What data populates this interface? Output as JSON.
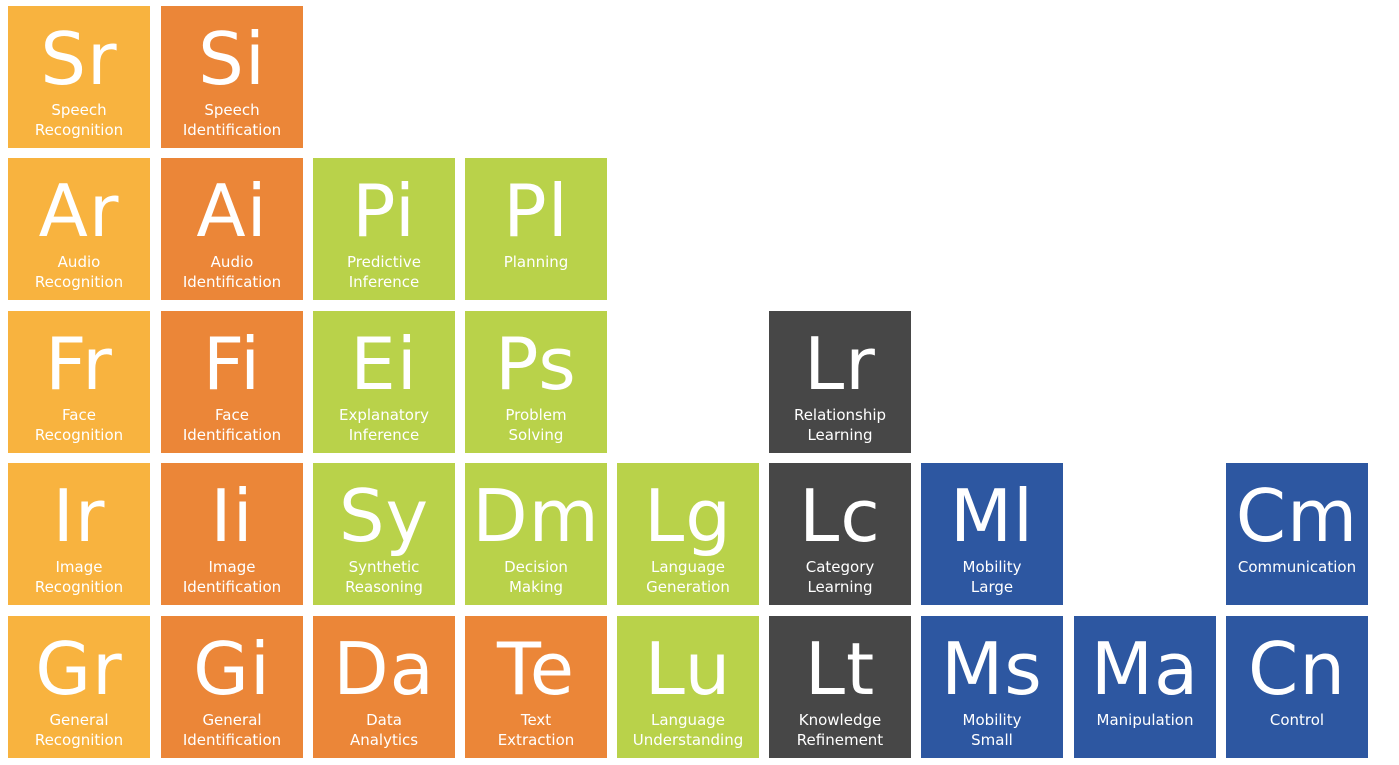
{
  "colors": {
    "yellow": "#F8B33F",
    "orange": "#EB8638",
    "green": "#B9D24A",
    "dark": "#474747",
    "blue": "#2D57A1"
  },
  "elements": {
    "sr": {
      "symbol": "Sr",
      "line1": "Speech",
      "line2": "Recognition"
    },
    "si": {
      "symbol": "Si",
      "line1": "Speech",
      "line2": "Identification"
    },
    "ar": {
      "symbol": "Ar",
      "line1": "Audio",
      "line2": "Recognition"
    },
    "ai": {
      "symbol": "Ai",
      "line1": "Audio",
      "line2": "Identification"
    },
    "pi": {
      "symbol": "Pi",
      "line1": "Predictive",
      "line2": "Inference"
    },
    "pl": {
      "symbol": "Pl",
      "line1": "Planning",
      "line2": ""
    },
    "fr": {
      "symbol": "Fr",
      "line1": "Face",
      "line2": "Recognition"
    },
    "fi": {
      "symbol": "Fi",
      "line1": "Face",
      "line2": "Identification"
    },
    "ei": {
      "symbol": "Ei",
      "line1": "Explanatory",
      "line2": "Inference"
    },
    "ps": {
      "symbol": "Ps",
      "line1": "Problem",
      "line2": "Solving"
    },
    "lr": {
      "symbol": "Lr",
      "line1": "Relationship",
      "line2": "Learning"
    },
    "ir": {
      "symbol": "Ir",
      "line1": "Image",
      "line2": "Recognition"
    },
    "ii": {
      "symbol": "Ii",
      "line1": "Image",
      "line2": "Identification"
    },
    "sy": {
      "symbol": "Sy",
      "line1": "Synthetic",
      "line2": "Reasoning"
    },
    "dm": {
      "symbol": "Dm",
      "line1": "Decision",
      "line2": "Making"
    },
    "lg": {
      "symbol": "Lg",
      "line1": "Language",
      "line2": "Generation"
    },
    "lc": {
      "symbol": "Lc",
      "line1": "Category",
      "line2": "Learning"
    },
    "ml": {
      "symbol": "Ml",
      "line1": "Mobility",
      "line2": "Large"
    },
    "cm": {
      "symbol": "Cm",
      "line1": "Communication",
      "line2": ""
    },
    "gr": {
      "symbol": "Gr",
      "line1": "General",
      "line2": "Recognition"
    },
    "gi": {
      "symbol": "Gi",
      "line1": "General",
      "line2": "Identification"
    },
    "da": {
      "symbol": "Da",
      "line1": "Data",
      "line2": "Analytics"
    },
    "te": {
      "symbol": "Te",
      "line1": "Text",
      "line2": "Extraction"
    },
    "lu": {
      "symbol": "Lu",
      "line1": "Language",
      "line2": "Understanding"
    },
    "lt": {
      "symbol": "Lt",
      "line1": "Knowledge",
      "line2": "Refinement"
    },
    "ms": {
      "symbol": "Ms",
      "line1": "Mobility",
      "line2": "Small"
    },
    "ma": {
      "symbol": "Ma",
      "line1": "Manipulation",
      "line2": ""
    },
    "cn": {
      "symbol": "Cn",
      "line1": "Control",
      "line2": ""
    }
  }
}
